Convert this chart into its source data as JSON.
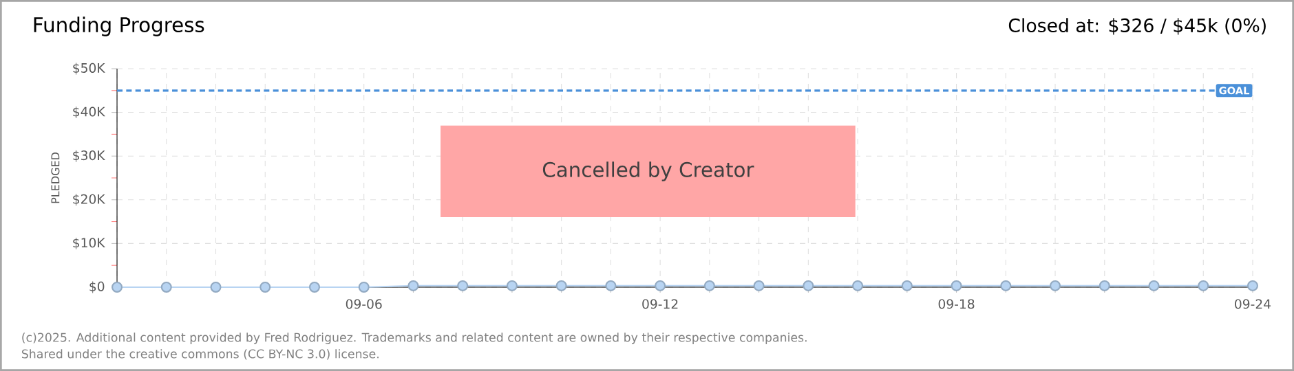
{
  "chart_data": {
    "type": "line",
    "title": "Funding Progress",
    "subtitle": "Closed at:  $326 /  $45k (0%)",
    "categories": [
      null,
      null,
      null,
      null,
      null,
      "09-06",
      null,
      null,
      null,
      null,
      null,
      "09-12",
      null,
      null,
      null,
      null,
      null,
      "09-18",
      null,
      null,
      null,
      null,
      null,
      "09-24"
    ],
    "series": [
      {
        "color": "#b8d4f2",
        "values": [
          0,
          0,
          0,
          0,
          0,
          0,
          326,
          326,
          326,
          326,
          326,
          326,
          326,
          326,
          326,
          326,
          326,
          326,
          326,
          326,
          326,
          326,
          326,
          326
        ]
      }
    ],
    "ylim": [
      0,
      50000
    ],
    "yticks": [
      {
        "value": 0,
        "label": "$0"
      },
      {
        "value": 10000,
        "label": "$10K"
      },
      {
        "value": 20000,
        "label": "$20K"
      },
      {
        "value": 30000,
        "label": "$30K"
      },
      {
        "value": 40000,
        "label": "$40K"
      },
      {
        "value": 50000,
        "label": "$50K"
      }
    ],
    "ylabel": "PLEDGED",
    "ref_lines": [
      {
        "axis": "y",
        "value": 45000,
        "label": "GOAL",
        "color": "#4a90d9",
        "line_style": "dashed"
      }
    ],
    "annotations": [
      "Cancelled by Creator",
      "(c)2025. Additional content provided by Fred Rodriguez. Trademarks and related content are owned by their respective companies.",
      "Shared under the creative commons (CC BY-NC 3.0) license."
    ],
    "grid": true,
    "marker": "circle",
    "line_style": "solid"
  }
}
